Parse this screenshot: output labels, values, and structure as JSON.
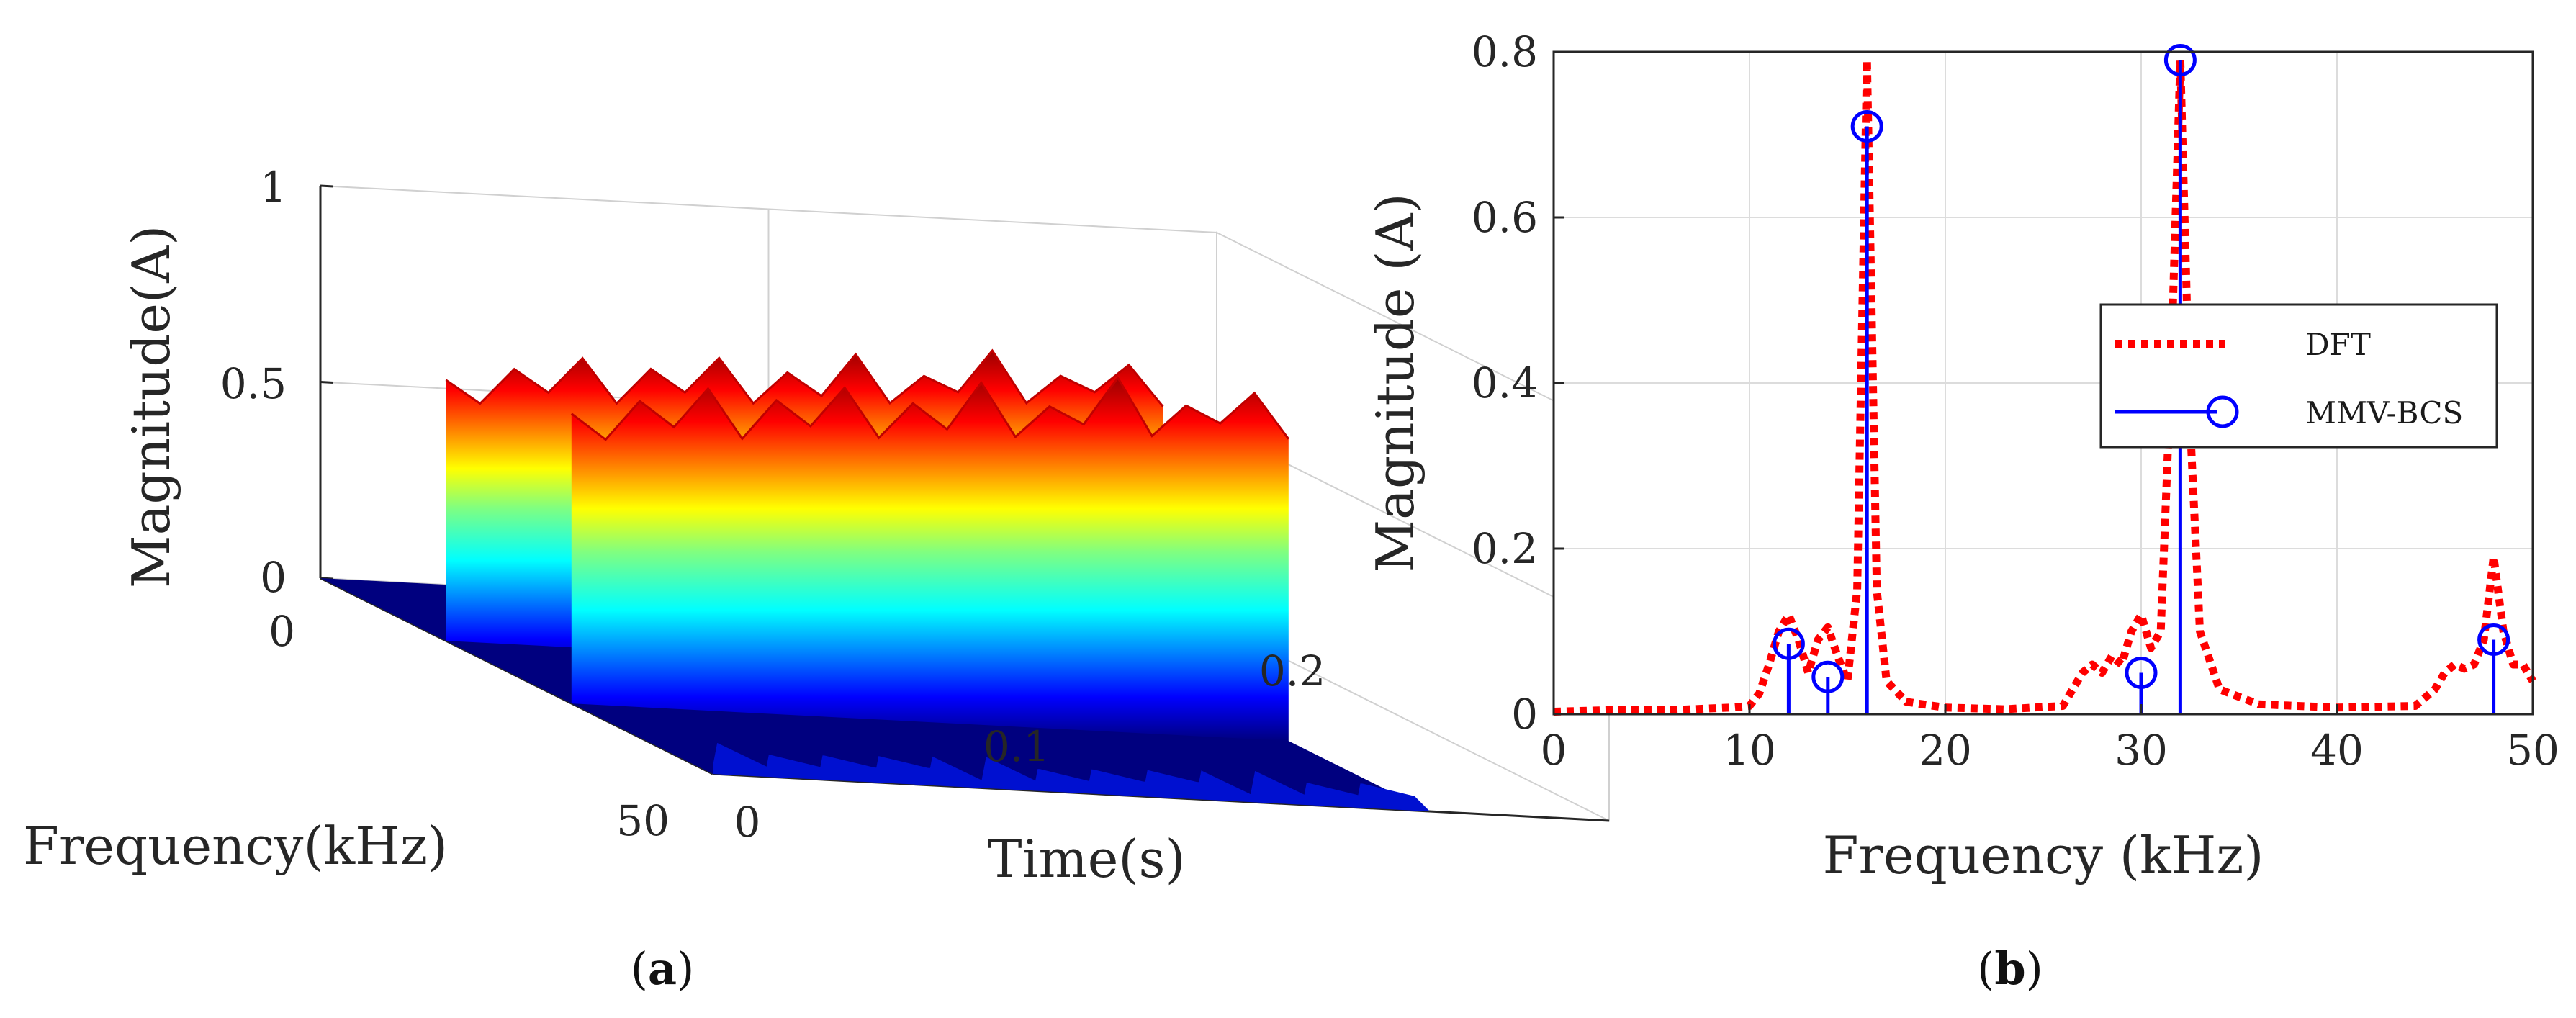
{
  "colors": {
    "dft": "#ff0000",
    "bcs": "#0000ff",
    "grid": "#dcdcdc",
    "axis": "#262626"
  },
  "panel_a": {
    "caption_open": "(",
    "caption_letter": "a",
    "caption_close": ")"
  },
  "panel_b": {
    "caption_open": "(",
    "caption_letter": "b",
    "caption_close": ")"
  },
  "chart_data": [
    {
      "type": "surface3d",
      "title": "",
      "xlabel": "Time(s)",
      "ylabel": "Frequency(kHz)",
      "zlabel": "Magnitude(A)",
      "x_ticks": [
        "0",
        "0.1",
        "0.2"
      ],
      "y_ticks": [
        "0",
        "50"
      ],
      "z_ticks": [
        "0",
        "0.5",
        "1"
      ],
      "xlim": [
        0,
        0.2
      ],
      "ylim": [
        0,
        50
      ],
      "zlim": [
        0,
        1
      ],
      "colormap": "jet",
      "grid": true,
      "ridges": [
        {
          "frequency_khz": 16,
          "mean_magnitude": 0.72,
          "t_start": 0.0,
          "t_end": 0.16
        },
        {
          "frequency_khz": 32,
          "mean_magnitude": 0.8,
          "t_start": 0.0,
          "t_end": 0.16
        }
      ],
      "peak_profile": [
        0.72,
        0.66,
        0.76,
        0.7,
        0.8,
        0.68,
        0.78,
        0.72,
        0.82,
        0.7,
        0.79,
        0.73,
        0.85,
        0.72,
        0.8,
        0.76,
        0.88,
        0.74,
        0.82,
        0.78,
        0.86,
        0.75
      ]
    },
    {
      "type": "line",
      "title": "",
      "xlabel": "Frequency (kHz)",
      "ylabel": "Magnitude (A)",
      "xlim": [
        0,
        50
      ],
      "ylim": [
        0,
        0.8
      ],
      "x_ticks": [
        0,
        10,
        20,
        30,
        40,
        50
      ],
      "y_ticks": [
        0,
        0.2,
        0.4,
        0.6,
        0.8
      ],
      "grid": true,
      "legend_position": "right",
      "series": [
        {
          "name": "DFT",
          "style": "dotted-line",
          "x": [
            0,
            3,
            6,
            9,
            10,
            10.5,
            11,
            11.5,
            12,
            12.5,
            13,
            13.5,
            14,
            14.5,
            15,
            15.5,
            16,
            16.5,
            17,
            18,
            20,
            23,
            26,
            27,
            27.5,
            28,
            28.5,
            29,
            29.5,
            30,
            30.5,
            31,
            31.5,
            32,
            32.5,
            33,
            34,
            36,
            40,
            44,
            45,
            45.5,
            46,
            46.5,
            47,
            47.5,
            48,
            48.5,
            49,
            49.5,
            50
          ],
          "values": [
            0.003,
            0.005,
            0.005,
            0.008,
            0.01,
            0.025,
            0.06,
            0.1,
            0.12,
            0.09,
            0.05,
            0.09,
            0.105,
            0.07,
            0.04,
            0.15,
            0.79,
            0.15,
            0.04,
            0.015,
            0.008,
            0.006,
            0.01,
            0.05,
            0.06,
            0.05,
            0.07,
            0.06,
            0.1,
            0.12,
            0.08,
            0.1,
            0.4,
            0.79,
            0.35,
            0.1,
            0.03,
            0.012,
            0.008,
            0.01,
            0.03,
            0.05,
            0.06,
            0.055,
            0.06,
            0.09,
            0.19,
            0.1,
            0.06,
            0.06,
            0.04
          ]
        },
        {
          "name": "MMV-BCS",
          "style": "stem",
          "x": [
            12,
            14,
            16,
            30,
            32,
            48
          ],
          "values": [
            0.085,
            0.045,
            0.71,
            0.05,
            0.79,
            0.09
          ]
        }
      ]
    }
  ]
}
